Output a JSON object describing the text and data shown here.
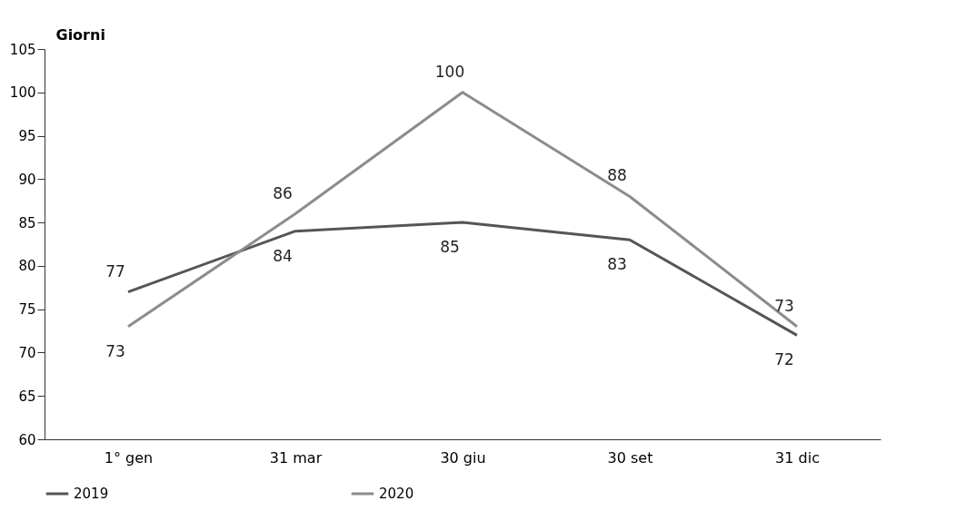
{
  "chart_data": {
    "type": "line",
    "ylabel": "Giorni",
    "categories": [
      "1° gen",
      "31 mar",
      "30 giu",
      "30 set",
      "31 dic"
    ],
    "series": [
      {
        "name": "2019",
        "color": "#555555",
        "values": [
          77,
          84,
          85,
          83,
          72
        ]
      },
      {
        "name": "2020",
        "color": "#8c8c8c",
        "values": [
          73,
          86,
          100,
          88,
          73
        ]
      }
    ],
    "ylim": [
      60,
      105
    ],
    "yticks": [
      60,
      65,
      70,
      75,
      80,
      85,
      90,
      95,
      100,
      105
    ],
    "data_labels": true,
    "grid": false,
    "legend": "bottom",
    "marker": "none",
    "line_style": "solid"
  }
}
